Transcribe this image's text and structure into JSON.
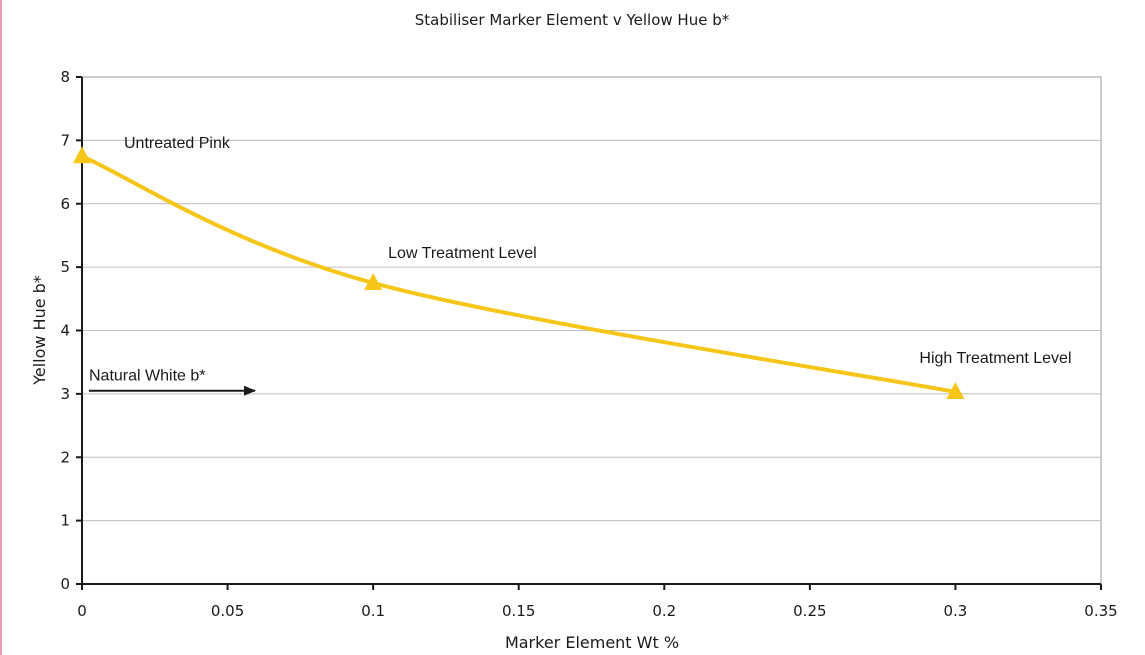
{
  "chart_data": {
    "type": "line",
    "title": "Stabiliser Marker Element v Yellow Hue b*",
    "xlabel": "Marker Element Wt %",
    "ylabel": "Yellow Hue b*",
    "xlim": [
      0,
      0.35
    ],
    "ylim": [
      0,
      8
    ],
    "x_ticks": [
      0,
      0.05,
      0.1,
      0.15,
      0.2,
      0.25,
      0.3,
      0.35
    ],
    "x_tick_labels": [
      "0",
      "0.05",
      "0.1",
      "0.15",
      "0.2",
      "0.25",
      "0.3",
      "0.35"
    ],
    "y_ticks": [
      0,
      1,
      2,
      3,
      4,
      5,
      6,
      7,
      8
    ],
    "y_tick_labels": [
      "0",
      "1",
      "2",
      "3",
      "4",
      "5",
      "6",
      "7",
      "8"
    ],
    "grid": "horizontal",
    "series": [
      {
        "color": "#f5c518",
        "marker": "triangle",
        "points": [
          {
            "x": 0,
            "y": 6.75,
            "label": "Untreated Pink"
          },
          {
            "x": 0.1,
            "y": 4.75,
            "label": "Low Treatment Level"
          },
          {
            "x": 0.3,
            "y": 3.03,
            "label": "High Treatment Level"
          }
        ]
      }
    ],
    "annotations": [
      {
        "text": "Natural White b*",
        "y": 3.05,
        "arrow": "right"
      }
    ]
  }
}
